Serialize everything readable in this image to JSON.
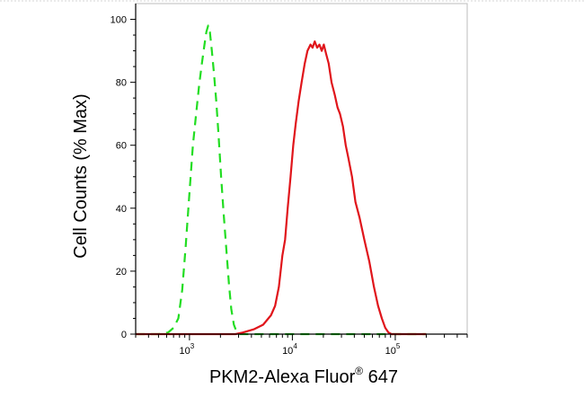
{
  "chart_data": {
    "type": "line",
    "title": "",
    "ylabel": "Cell Counts (% Max)",
    "xlabel": {
      "prefix": "PKM2-Alexa Fluor",
      "registered": "®",
      "suffix": " 647"
    },
    "xscale": "log",
    "xlim": [
      300,
      500000
    ],
    "ylim": [
      0,
      105
    ],
    "yticks": [
      "0",
      "20",
      "40",
      "60",
      "80",
      "100"
    ],
    "xticks": [
      {
        "value": 1000,
        "base": "10",
        "exp": "3"
      },
      {
        "value": 10000,
        "base": "10",
        "exp": "4"
      },
      {
        "value": 100000,
        "base": "10",
        "exp": "5"
      }
    ],
    "grid": false,
    "legend": "none",
    "series": [
      {
        "color": "#22dd22",
        "style": "dashed",
        "points": [
          [
            300,
            0
          ],
          [
            500,
            0
          ],
          [
            620,
            0.5
          ],
          [
            700,
            2
          ],
          [
            780,
            5
          ],
          [
            850,
            14
          ],
          [
            920,
            28
          ],
          [
            1000,
            45
          ],
          [
            1080,
            60
          ],
          [
            1160,
            70
          ],
          [
            1240,
            79
          ],
          [
            1320,
            86
          ],
          [
            1400,
            92
          ],
          [
            1460,
            96
          ],
          [
            1520,
            98
          ],
          [
            1580,
            96
          ],
          [
            1650,
            90
          ],
          [
            1730,
            83
          ],
          [
            1820,
            74
          ],
          [
            1920,
            63
          ],
          [
            2030,
            50
          ],
          [
            2150,
            38
          ],
          [
            2280,
            27
          ],
          [
            2420,
            16
          ],
          [
            2550,
            8
          ],
          [
            2700,
            3
          ],
          [
            2850,
            1
          ],
          [
            3000,
            0
          ],
          [
            40000,
            0
          ],
          [
            100000,
            0
          ],
          [
            200000,
            0
          ]
        ]
      },
      {
        "color": "#e0151b",
        "style": "solid",
        "points": [
          [
            300,
            0
          ],
          [
            2800,
            0
          ],
          [
            3300,
            0.5
          ],
          [
            4200,
            1.5
          ],
          [
            5200,
            3
          ],
          [
            6200,
            6
          ],
          [
            6800,
            9
          ],
          [
            7400,
            15
          ],
          [
            8000,
            25
          ],
          [
            8500,
            30
          ],
          [
            9000,
            40
          ],
          [
            9600,
            50
          ],
          [
            10200,
            60
          ],
          [
            10800,
            67
          ],
          [
            11500,
            74
          ],
          [
            12300,
            80
          ],
          [
            13200,
            86
          ],
          [
            14000,
            90
          ],
          [
            15000,
            92
          ],
          [
            15700,
            91
          ],
          [
            16500,
            93
          ],
          [
            17400,
            91
          ],
          [
            18300,
            92
          ],
          [
            19300,
            90
          ],
          [
            20200,
            92
          ],
          [
            21300,
            89
          ],
          [
            22500,
            86
          ],
          [
            24000,
            80
          ],
          [
            25800,
            76
          ],
          [
            27500,
            72
          ],
          [
            29000,
            70
          ],
          [
            31000,
            66
          ],
          [
            33000,
            60
          ],
          [
            35000,
            56
          ],
          [
            38000,
            50
          ],
          [
            41000,
            42
          ],
          [
            45000,
            37
          ],
          [
            50000,
            30
          ],
          [
            56000,
            23
          ],
          [
            62000,
            15
          ],
          [
            68000,
            9
          ],
          [
            74000,
            5
          ],
          [
            80000,
            2
          ],
          [
            86000,
            0.5
          ],
          [
            92000,
            0
          ],
          [
            200000,
            0
          ]
        ]
      }
    ]
  }
}
